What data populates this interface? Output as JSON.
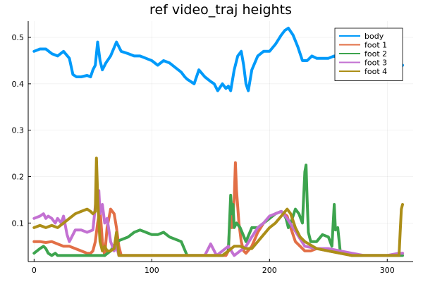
{
  "chart_data": {
    "type": "line",
    "title": "ref video_traj heights",
    "xlabel": "",
    "ylabel": "",
    "xlim": [
      -5,
      322
    ],
    "ylim": [
      0.017,
      0.535
    ],
    "xticks": [
      0,
      100,
      200,
      300
    ],
    "yticks": [
      0.1,
      0.2,
      0.3,
      0.4,
      0.5
    ],
    "grid": true,
    "legend_position": "top-right",
    "series": [
      {
        "name": "body",
        "color": "#009AFA",
        "x": [
          0,
          5,
          10,
          15,
          20,
          25,
          30,
          33,
          36,
          40,
          45,
          48,
          50,
          52,
          54,
          56,
          58,
          61,
          65,
          70,
          74,
          80,
          85,
          90,
          95,
          100,
          105,
          110,
          115,
          120,
          125,
          128,
          130,
          133,
          136,
          140,
          145,
          150,
          153,
          156,
          160,
          163,
          165,
          167,
          170,
          173,
          176,
          178,
          180,
          182,
          185,
          190,
          195,
          200,
          205,
          210,
          213,
          216,
          220,
          224,
          228,
          232,
          236,
          240,
          245,
          250,
          255,
          260,
          265,
          270,
          275,
          280,
          285,
          290,
          295,
          300,
          305,
          310,
          313
        ],
        "y": [
          0.47,
          0.475,
          0.475,
          0.465,
          0.46,
          0.47,
          0.455,
          0.42,
          0.415,
          0.415,
          0.418,
          0.415,
          0.43,
          0.44,
          0.49,
          0.45,
          0.43,
          0.445,
          0.46,
          0.49,
          0.47,
          0.465,
          0.46,
          0.46,
          0.455,
          0.45,
          0.44,
          0.45,
          0.445,
          0.435,
          0.425,
          0.415,
          0.41,
          0.405,
          0.4,
          0.43,
          0.415,
          0.405,
          0.4,
          0.385,
          0.4,
          0.39,
          0.395,
          0.385,
          0.43,
          0.46,
          0.47,
          0.44,
          0.4,
          0.385,
          0.43,
          0.46,
          0.47,
          0.47,
          0.485,
          0.505,
          0.515,
          0.52,
          0.505,
          0.48,
          0.45,
          0.45,
          0.46,
          0.455,
          0.455,
          0.455,
          0.46,
          0.455,
          0.45,
          0.45,
          0.445,
          0.44,
          0.44,
          0.44,
          0.435,
          0.43,
          0.425,
          0.43,
          0.44
        ]
      },
      {
        "name": "foot 1",
        "color": "#E26F46",
        "x": [
          0,
          5,
          10,
          15,
          20,
          25,
          30,
          35,
          40,
          45,
          48,
          50,
          52,
          54,
          56,
          58,
          60,
          62,
          65,
          68,
          70,
          72,
          74,
          76,
          80,
          90,
          100,
          110,
          120,
          130,
          140,
          150,
          160,
          163,
          165,
          167,
          168,
          170,
          171,
          172,
          174,
          176,
          178,
          180,
          185,
          190,
          195,
          200,
          205,
          210,
          215,
          218,
          222,
          226,
          230,
          235,
          240,
          250,
          260,
          270,
          280,
          290,
          300,
          305,
          310,
          313
        ],
        "y": [
          0.06,
          0.06,
          0.058,
          0.06,
          0.055,
          0.05,
          0.05,
          0.045,
          0.04,
          0.035,
          0.035,
          0.04,
          0.06,
          0.1,
          0.13,
          0.06,
          0.03,
          0.09,
          0.13,
          0.12,
          0.09,
          0.05,
          0.03,
          0.03,
          0.03,
          0.03,
          0.03,
          0.03,
          0.03,
          0.03,
          0.03,
          0.03,
          0.03,
          0.03,
          0.04,
          0.14,
          0.09,
          0.15,
          0.23,
          0.17,
          0.1,
          0.06,
          0.04,
          0.035,
          0.05,
          0.08,
          0.1,
          0.11,
          0.12,
          0.125,
          0.115,
          0.09,
          0.06,
          0.05,
          0.04,
          0.04,
          0.045,
          0.04,
          0.035,
          0.03,
          0.03,
          0.03,
          0.03,
          0.03,
          0.03,
          0.035
        ]
      },
      {
        "name": "foot 2",
        "color": "#3DA44E",
        "x": [
          0,
          5,
          8,
          10,
          12,
          15,
          18,
          20,
          25,
          30,
          35,
          40,
          45,
          50,
          55,
          60,
          65,
          70,
          75,
          80,
          85,
          90,
          95,
          100,
          105,
          110,
          115,
          120,
          125,
          130,
          140,
          150,
          160,
          165,
          167,
          168,
          169,
          170,
          172,
          175,
          180,
          185,
          190,
          195,
          200,
          205,
          210,
          212,
          214,
          216,
          218,
          220,
          222,
          225,
          228,
          230,
          231,
          232,
          233,
          235,
          240,
          245,
          250,
          253,
          255,
          256,
          258,
          260,
          270,
          280,
          290,
          300,
          310,
          313
        ],
        "y": [
          0.035,
          0.045,
          0.05,
          0.045,
          0.035,
          0.03,
          0.035,
          0.03,
          0.03,
          0.03,
          0.03,
          0.03,
          0.03,
          0.03,
          0.03,
          0.03,
          0.04,
          0.06,
          0.065,
          0.07,
          0.08,
          0.085,
          0.08,
          0.075,
          0.075,
          0.08,
          0.07,
          0.065,
          0.06,
          0.03,
          0.03,
          0.03,
          0.03,
          0.04,
          0.16,
          0.12,
          0.14,
          0.09,
          0.1,
          0.09,
          0.06,
          0.09,
          0.09,
          0.1,
          0.11,
          0.12,
          0.125,
          0.12,
          0.11,
          0.09,
          0.1,
          0.115,
          0.13,
          0.12,
          0.1,
          0.21,
          0.225,
          0.15,
          0.08,
          0.06,
          0.06,
          0.075,
          0.07,
          0.05,
          0.14,
          0.085,
          0.09,
          0.04,
          0.03,
          0.03,
          0.03,
          0.03,
          0.03,
          0.03
        ]
      },
      {
        "name": "foot 3",
        "color": "#C371D2",
        "x": [
          0,
          5,
          8,
          10,
          12,
          15,
          18,
          20,
          23,
          25,
          28,
          30,
          32,
          35,
          40,
          45,
          50,
          53,
          55,
          56,
          58,
          60,
          62,
          65,
          68,
          70,
          72,
          75,
          80,
          90,
          100,
          110,
          120,
          125,
          130,
          135,
          140,
          145,
          150,
          155,
          160,
          165,
          170,
          175,
          180,
          185,
          190,
          195,
          200,
          205,
          210,
          215,
          220,
          225,
          230,
          240,
          250,
          260,
          270,
          280,
          290,
          300,
          310,
          313
        ],
        "y": [
          0.11,
          0.115,
          0.12,
          0.11,
          0.115,
          0.11,
          0.1,
          0.11,
          0.1,
          0.115,
          0.075,
          0.06,
          0.07,
          0.085,
          0.085,
          0.08,
          0.085,
          0.16,
          0.17,
          0.12,
          0.14,
          0.1,
          0.11,
          0.06,
          0.04,
          0.05,
          0.03,
          0.03,
          0.03,
          0.03,
          0.03,
          0.03,
          0.03,
          0.03,
          0.03,
          0.03,
          0.03,
          0.03,
          0.055,
          0.03,
          0.04,
          0.05,
          0.03,
          0.04,
          0.05,
          0.07,
          0.09,
          0.1,
          0.115,
          0.12,
          0.125,
          0.11,
          0.09,
          0.07,
          0.05,
          0.045,
          0.045,
          0.04,
          0.035,
          0.03,
          0.03,
          0.03,
          0.035,
          0.035
        ]
      },
      {
        "name": "foot 4",
        "color": "#AC8E18",
        "x": [
          0,
          5,
          10,
          15,
          20,
          25,
          30,
          35,
          40,
          45,
          48,
          50,
          52,
          53,
          54,
          55,
          56,
          58,
          60,
          62,
          65,
          68,
          70,
          72,
          74,
          76,
          80,
          90,
          100,
          110,
          120,
          130,
          140,
          150,
          160,
          165,
          170,
          175,
          180,
          185,
          190,
          195,
          200,
          205,
          210,
          215,
          218,
          222,
          226,
          230,
          240,
          250,
          260,
          270,
          280,
          290,
          300,
          305,
          310,
          311,
          312,
          313
        ],
        "y": [
          0.09,
          0.095,
          0.09,
          0.095,
          0.09,
          0.1,
          0.11,
          0.12,
          0.125,
          0.13,
          0.125,
          0.12,
          0.125,
          0.24,
          0.16,
          0.1,
          0.06,
          0.04,
          0.05,
          0.04,
          0.04,
          0.045,
          0.08,
          0.03,
          0.03,
          0.03,
          0.03,
          0.03,
          0.03,
          0.03,
          0.03,
          0.03,
          0.03,
          0.03,
          0.03,
          0.04,
          0.05,
          0.05,
          0.045,
          0.045,
          0.06,
          0.075,
          0.09,
          0.1,
          0.115,
          0.13,
          0.12,
          0.09,
          0.07,
          0.06,
          0.045,
          0.04,
          0.035,
          0.03,
          0.03,
          0.03,
          0.03,
          0.03,
          0.03,
          0.08,
          0.13,
          0.14
        ]
      }
    ]
  }
}
